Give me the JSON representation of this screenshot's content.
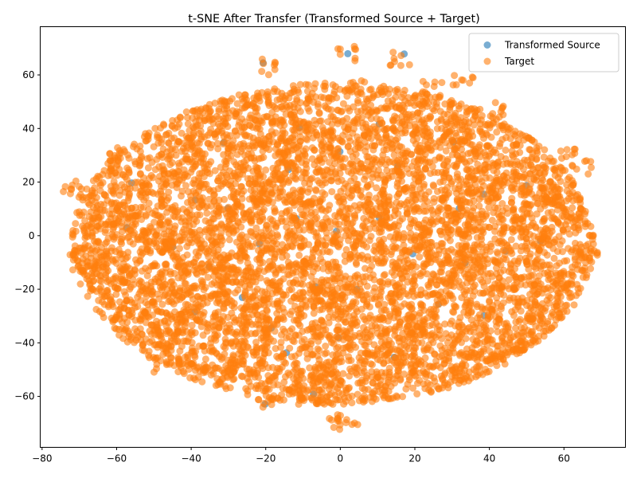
{
  "chart_data": {
    "type": "scatter",
    "title": "t-SNE After Transfer (Transformed Source + Target)",
    "xlabel": "",
    "ylabel": "",
    "xlim": [
      -80.5,
      76.5
    ],
    "ylim": [
      -79,
      78
    ],
    "xticks": [
      -80,
      -60,
      -40,
      -20,
      0,
      20,
      40,
      60
    ],
    "yticks": [
      -60,
      -40,
      -20,
      0,
      20,
      40,
      60
    ],
    "xtick_labels": [
      "−80",
      "−60",
      "−40",
      "−20",
      "0",
      "20",
      "40",
      "60"
    ],
    "ytick_labels": [
      "−60",
      "−40",
      "−20",
      "0",
      "20",
      "40",
      "60"
    ],
    "grid": false,
    "legend_position": "top-right",
    "series": [
      {
        "name": "Transformed Source",
        "color": "#1f77b4",
        "alpha": 0.6
      },
      {
        "name": "Target",
        "color": "#ff7f0e",
        "alpha": 0.6
      }
    ],
    "points": [
      [
        0,
        0
      ],
      [
        10,
        5
      ],
      [
        -10,
        5
      ],
      [
        20,
        -5
      ],
      [
        -20,
        -5
      ],
      [
        30,
        10
      ],
      [
        -30,
        10
      ],
      [
        15,
        25
      ],
      [
        -15,
        25
      ],
      [
        0,
        30
      ],
      [
        5,
        -20
      ],
      [
        -5,
        -20
      ],
      [
        25,
        -25
      ],
      [
        -25,
        -25
      ],
      [
        35,
        -10
      ],
      [
        -35,
        -10
      ],
      [
        40,
        15
      ],
      [
        -40,
        15
      ],
      [
        10,
        40
      ],
      [
        -10,
        40
      ],
      [
        45,
        -5
      ],
      [
        -45,
        -5
      ],
      [
        20,
        -35
      ],
      [
        -20,
        -35
      ],
      [
        0,
        -40
      ],
      [
        50,
        20
      ],
      [
        -55,
        18
      ],
      [
        30,
        35
      ],
      [
        -30,
        35
      ],
      [
        55,
        0
      ],
      [
        -58,
        2
      ],
      [
        40,
        -30
      ],
      [
        -40,
        -30
      ],
      [
        15,
        -45
      ],
      [
        -15,
        -45
      ],
      [
        2,
        68
      ],
      [
        16,
        66
      ],
      [
        -20,
        63
      ],
      [
        -19,
        -62
      ],
      [
        -9,
        -60
      ],
      [
        2,
        -70
      ],
      [
        -1,
        -69
      ],
      [
        33,
        59
      ],
      [
        43,
        47
      ],
      [
        -65,
        -12
      ],
      [
        -68,
        16
      ],
      [
        65,
        25
      ],
      [
        66,
        -5
      ],
      [
        -40,
        -28
      ],
      [
        -48,
        -48
      ],
      [
        63,
        5
      ],
      [
        -72,
        18
      ],
      [
        60,
        -18
      ],
      [
        36,
        45
      ],
      [
        -36,
        45
      ],
      [
        47,
        -40
      ],
      [
        -47,
        -40
      ],
      [
        60,
        30
      ],
      [
        -60,
        30
      ],
      [
        25,
        55
      ],
      [
        -25,
        50
      ],
      [
        5,
        55
      ],
      [
        -5,
        -55
      ],
      [
        30,
        -50
      ],
      [
        -30,
        -50
      ],
      [
        66,
        -8
      ],
      [
        -70,
        -10
      ],
      [
        -62,
        -18
      ],
      [
        58,
        12
      ],
      [
        52,
        -25
      ],
      [
        -52,
        -20
      ],
      [
        8,
        12
      ],
      [
        -8,
        -12
      ],
      [
        18,
        18
      ],
      [
        -18,
        18
      ],
      [
        28,
        -18
      ],
      [
        -28,
        -15
      ],
      [
        12,
        -28
      ],
      [
        -12,
        28
      ],
      [
        38,
        22
      ]
    ]
  }
}
